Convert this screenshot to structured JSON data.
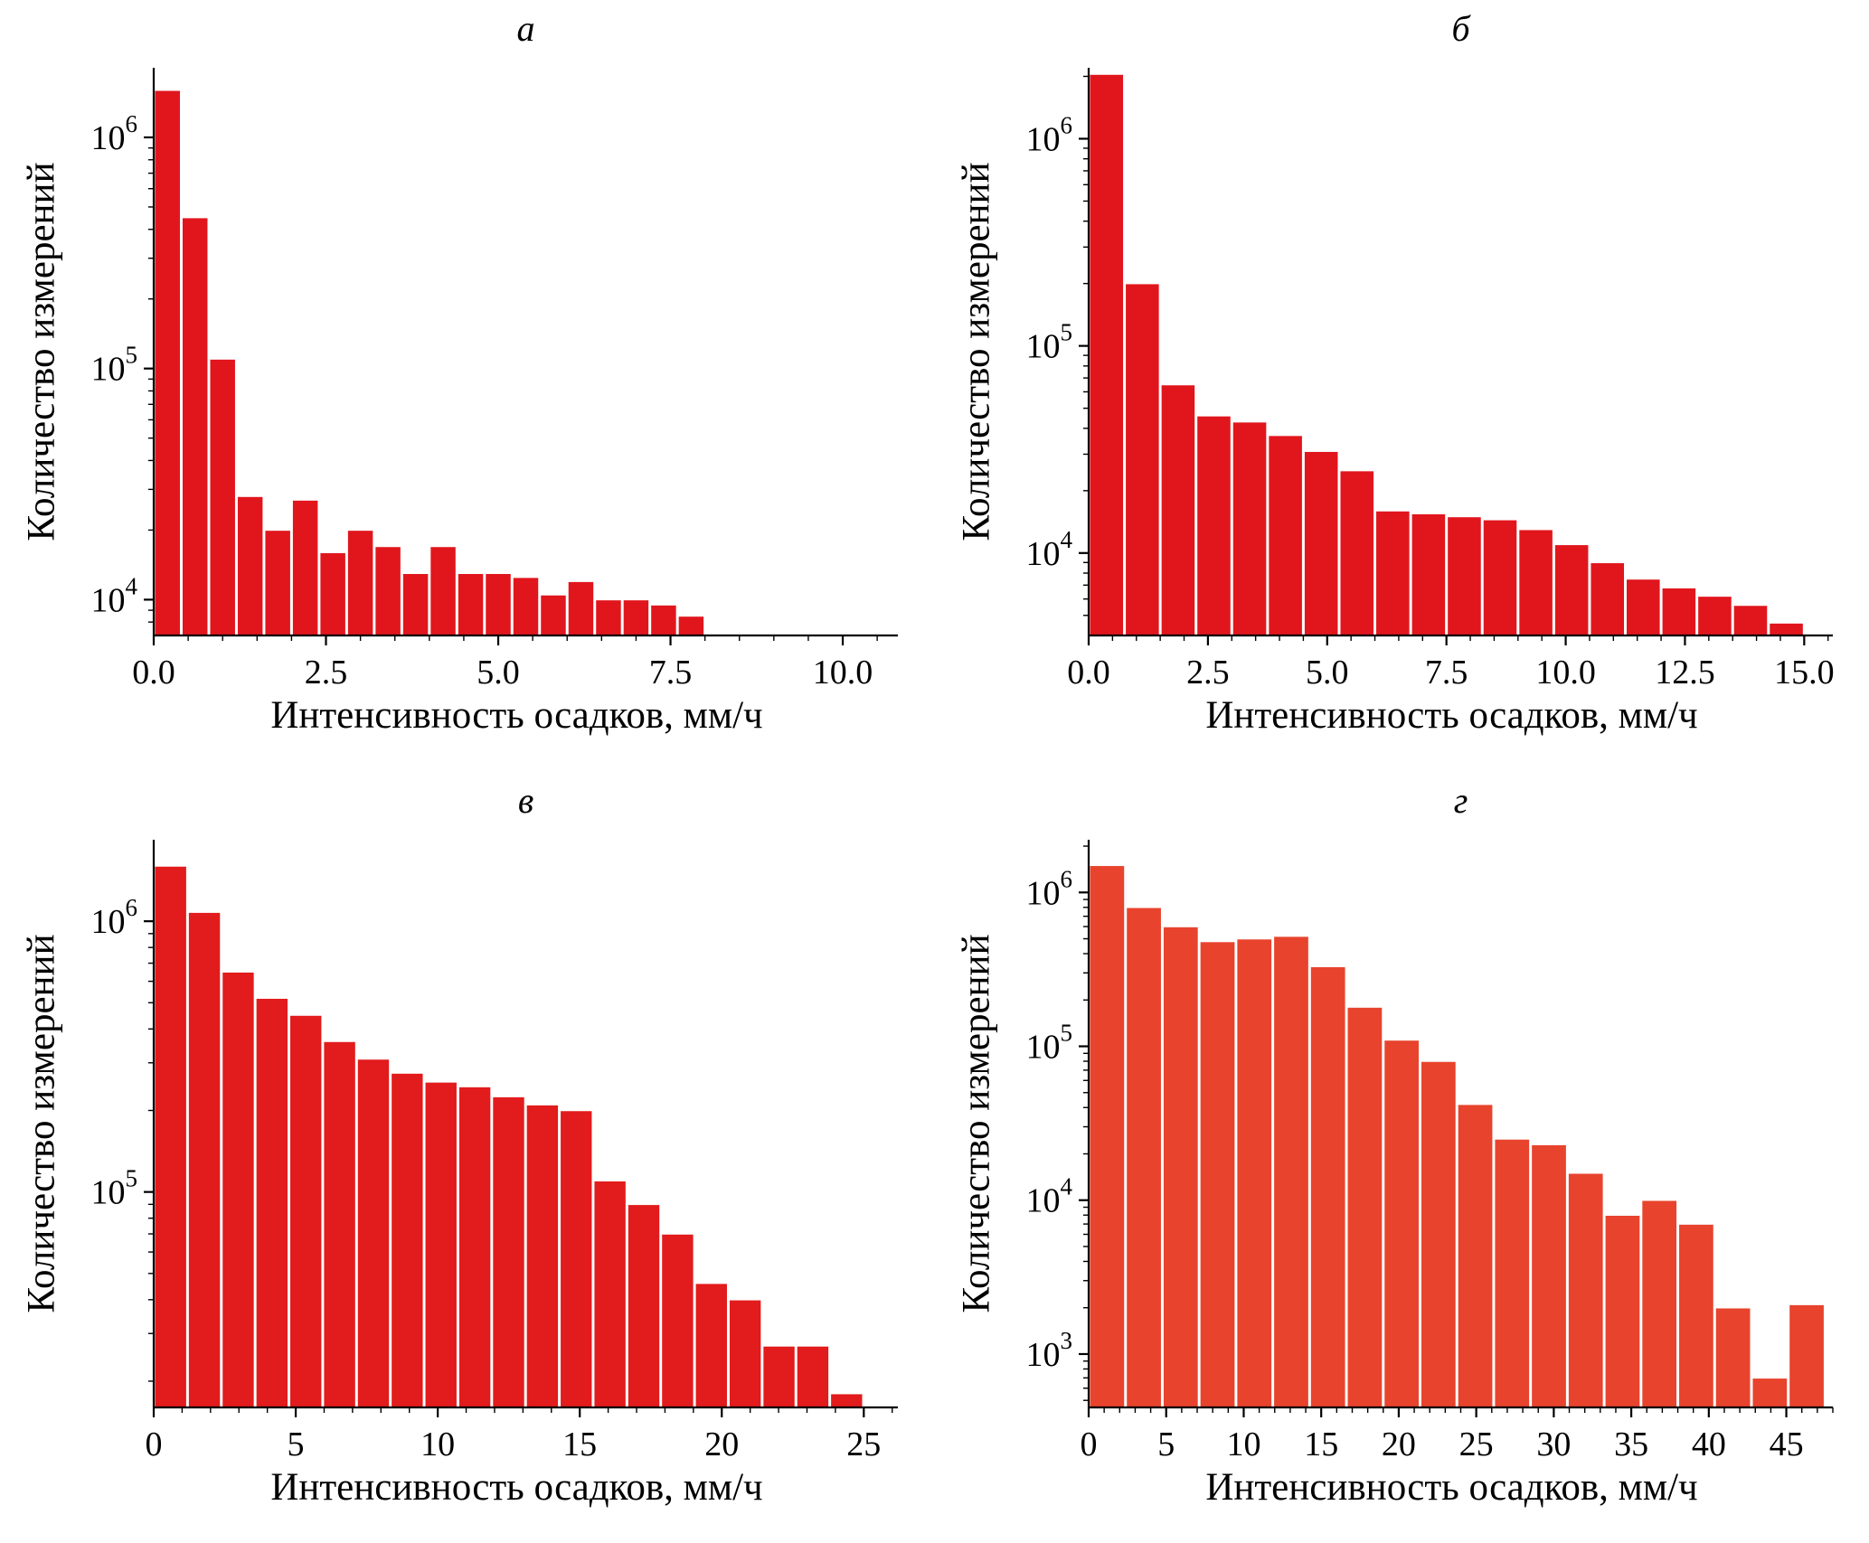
{
  "figure": {
    "background": "#ffffff",
    "xlabel": "Интенсивность осадков, мм/ч",
    "ylabel": "Количество измерений"
  },
  "chart_data": [
    {
      "type": "bar",
      "title": "а",
      "xlabel": "Интенсивность осадков, мм/ч",
      "ylabel": "Количество измерений",
      "bar_color": "#e1161d",
      "x_start": 0,
      "bar_width": 0.4,
      "values": [
        1600000,
        450000,
        110000,
        28000,
        20000,
        27000,
        16000,
        20000,
        17000,
        13000,
        17000,
        13000,
        13000,
        12500,
        10500,
        12000,
        10000,
        10000,
        9500,
        8500
      ],
      "xlim": [
        0,
        10.8
      ],
      "ylim": [
        7000,
        2000000
      ],
      "x_minor_step": 0.5,
      "xticks": [
        {
          "v": 0,
          "label": "0.0"
        },
        {
          "v": 2.5,
          "label": "2.5"
        },
        {
          "v": 5,
          "label": "5.0"
        },
        {
          "v": 7.5,
          "label": "7.5"
        },
        {
          "v": 10,
          "label": "10.0"
        }
      ],
      "yticks": [
        {
          "v": 10000,
          "exp": "4"
        },
        {
          "v": 100000,
          "exp": "5"
        },
        {
          "v": 1000000,
          "exp": "6"
        }
      ]
    },
    {
      "type": "bar",
      "title": "б",
      "xlabel": "Интенсивность осадков, мм/ч",
      "ylabel": "Количество измерений",
      "bar_color": "#e1161d",
      "x_start": 0,
      "bar_width": 0.75,
      "values": [
        2050000,
        200000,
        65000,
        46000,
        43000,
        37000,
        31000,
        25000,
        16000,
        15500,
        15000,
        14500,
        13000,
        11000,
        9000,
        7500,
        6800,
        6200,
        5600,
        4600
      ],
      "xlim": [
        0,
        15.6
      ],
      "ylim": [
        4000,
        2200000
      ],
      "x_minor_step": 0.5,
      "xticks": [
        {
          "v": 0,
          "label": "0.0"
        },
        {
          "v": 2.5,
          "label": "2.5"
        },
        {
          "v": 5,
          "label": "5.0"
        },
        {
          "v": 7.5,
          "label": "7.5"
        },
        {
          "v": 10,
          "label": "10.0"
        },
        {
          "v": 12.5,
          "label": "12.5"
        },
        {
          "v": 15,
          "label": "15.0"
        }
      ],
      "yticks": [
        {
          "v": 10000,
          "exp": "4"
        },
        {
          "v": 100000,
          "exp": "5"
        },
        {
          "v": 1000000,
          "exp": "6"
        }
      ]
    },
    {
      "type": "bar",
      "title": "в",
      "xlabel": "Интенсивность осадков, мм/ч",
      "ylabel": "Количество измерений",
      "bar_color": "#e21b1c",
      "x_start": 0,
      "bar_width": 1.19,
      "values": [
        1600000,
        1080000,
        650000,
        520000,
        450000,
        360000,
        310000,
        275000,
        255000,
        245000,
        225000,
        210000,
        200000,
        110000,
        90000,
        70000,
        46000,
        40000,
        27000,
        27000,
        18000
      ],
      "xlim": [
        0,
        26.2
      ],
      "ylim": [
        16000,
        2000000
      ],
      "x_minor_step": 1,
      "xticks": [
        {
          "v": 0,
          "label": "0"
        },
        {
          "v": 5,
          "label": "5"
        },
        {
          "v": 10,
          "label": "10"
        },
        {
          "v": 15,
          "label": "15"
        },
        {
          "v": 20,
          "label": "20"
        },
        {
          "v": 25,
          "label": "25"
        }
      ],
      "yticks": [
        {
          "v": 100000,
          "exp": "5"
        },
        {
          "v": 1000000,
          "exp": "6"
        }
      ]
    },
    {
      "type": "bar",
      "title": "г",
      "xlabel": "Интенсивность осадков, мм/ч",
      "ylabel": "Количество измерений",
      "bar_color": "#e8432d",
      "x_start": 0,
      "bar_width": 2.375,
      "values": [
        1500000,
        800000,
        600000,
        480000,
        500000,
        520000,
        330000,
        180000,
        110000,
        80000,
        42000,
        25000,
        23000,
        15000,
        8000,
        10000,
        7000,
        2000,
        700,
        2100
      ],
      "xlim": [
        0,
        48
      ],
      "ylim": [
        450,
        2200000
      ],
      "x_minor_step": 1,
      "xticks": [
        {
          "v": 0,
          "label": "0"
        },
        {
          "v": 5,
          "label": "5"
        },
        {
          "v": 10,
          "label": "10"
        },
        {
          "v": 15,
          "label": "15"
        },
        {
          "v": 20,
          "label": "20"
        },
        {
          "v": 25,
          "label": "25"
        },
        {
          "v": 30,
          "label": "30"
        },
        {
          "v": 35,
          "label": "35"
        },
        {
          "v": 40,
          "label": "40"
        },
        {
          "v": 45,
          "label": "45"
        }
      ],
      "yticks": [
        {
          "v": 1000,
          "exp": "3"
        },
        {
          "v": 10000,
          "exp": "4"
        },
        {
          "v": 100000,
          "exp": "5"
        },
        {
          "v": 1000000,
          "exp": "6"
        }
      ]
    }
  ]
}
